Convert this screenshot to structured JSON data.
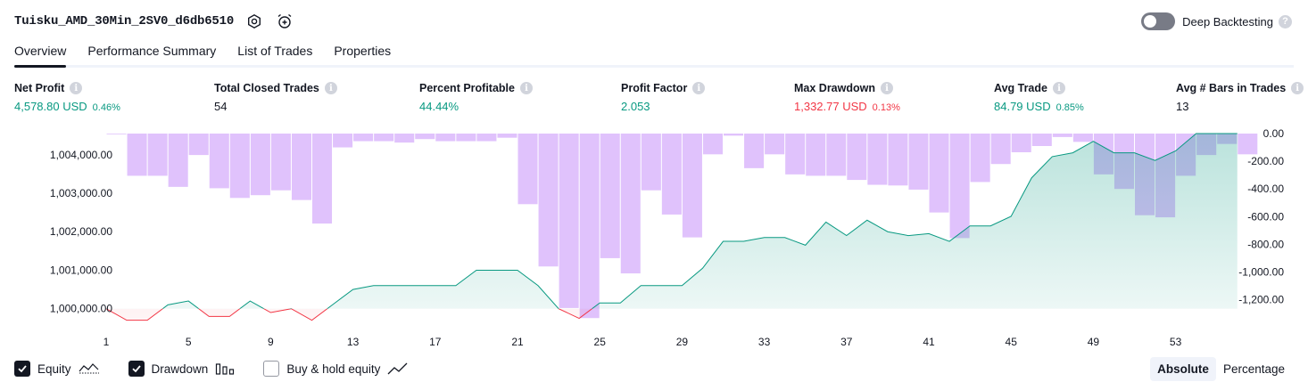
{
  "header": {
    "strategy_name": "Tuisku_AMD_30Min_2SV0_d6db6510",
    "settings_icon": "gear-icon",
    "replay_icon": "alarm-clock-plus-icon",
    "deep_backtesting_label": "Deep Backtesting",
    "deep_backtesting_enabled": false
  },
  "tabs": [
    {
      "label": "Overview",
      "active": true
    },
    {
      "label": "Performance Summary",
      "active": false
    },
    {
      "label": "List of Trades",
      "active": false
    },
    {
      "label": "Properties",
      "active": false
    }
  ],
  "metrics": [
    {
      "label": "Net Profit",
      "value": "4,578.80 USD",
      "pct": "0.46%",
      "tone": "pos"
    },
    {
      "label": "Total Closed Trades",
      "value": "54",
      "pct": "",
      "tone": "neu"
    },
    {
      "label": "Percent Profitable",
      "value": "44.44%",
      "pct": "",
      "tone": "pos"
    },
    {
      "label": "Profit Factor",
      "value": "2.053",
      "pct": "",
      "tone": "pos"
    },
    {
      "label": "Max Drawdown",
      "value": "1,332.77 USD",
      "pct": "0.13%",
      "tone": "neg"
    },
    {
      "label": "Avg Trade",
      "value": "84.79 USD",
      "pct": "0.85%",
      "tone": "pos"
    },
    {
      "label": "Avg # Bars in Trades",
      "value": "13",
      "pct": "",
      "tone": "neu"
    }
  ],
  "info_glyph": "i",
  "chart_data": {
    "type": "line+bar",
    "x": [
      1,
      2,
      3,
      4,
      5,
      6,
      7,
      8,
      9,
      10,
      11,
      12,
      13,
      14,
      15,
      16,
      17,
      18,
      19,
      20,
      21,
      22,
      23,
      24,
      25,
      26,
      27,
      28,
      29,
      30,
      31,
      32,
      33,
      34,
      35,
      36,
      37,
      38,
      39,
      40,
      41,
      42,
      43,
      44,
      45,
      46,
      47,
      48,
      49,
      50,
      51,
      52,
      53,
      54,
      55,
      56
    ],
    "x_ticks": [
      1,
      5,
      9,
      13,
      17,
      21,
      25,
      29,
      33,
      37,
      41,
      45,
      49,
      53
    ],
    "left_axis": {
      "ticks": [
        "1,000,000.00",
        "1,001,000.00",
        "1,002,000.00",
        "1,003,000.00",
        "1,004,000.00"
      ],
      "tick_values": [
        1000000,
        1001000,
        1002000,
        1003000,
        1004000
      ],
      "range": [
        999600,
        1004550
      ]
    },
    "right_axis": {
      "ticks": [
        "0.00",
        "-200.00",
        "-400.00",
        "-600.00",
        "-800.00",
        "-1,000.00",
        "-1,200.00"
      ],
      "tick_values": [
        0,
        -200,
        -400,
        -600,
        -800,
        -1000,
        -1200
      ],
      "range": [
        -1370,
        0
      ]
    },
    "series": [
      {
        "name": "Equity",
        "axis": "left",
        "color_up": "#089981",
        "color_down": "#f23645",
        "baseline": 1000000,
        "values": [
          1000000,
          999700,
          999700,
          1000100,
          1000200,
          999800,
          999800,
          1000200,
          999900,
          1000000,
          999700,
          1000100,
          1000500,
          1000600,
          1000600,
          1000600,
          1000600,
          1000600,
          1001000,
          1001000,
          1001000,
          1000600,
          1000000,
          999750,
          1000150,
          1000150,
          1000600,
          1000600,
          1000600,
          1001050,
          1001750,
          1001750,
          1001850,
          1001850,
          1001650,
          1002250,
          1001900,
          1002300,
          1002000,
          1001900,
          1001950,
          1001750,
          1002150,
          1002150,
          1002400,
          1003400,
          1003950,
          1004050,
          1004350,
          1004050,
          1004050,
          1003850,
          1004100,
          1004550,
          1004550,
          1004550
        ]
      },
      {
        "name": "Drawdown",
        "axis": "right",
        "color": "#dbb7fb",
        "values": [
          -5,
          -305,
          -305,
          -385,
          -155,
          -395,
          -465,
          -445,
          -410,
          -480,
          -650,
          -100,
          -55,
          -55,
          -65,
          -40,
          -55,
          -55,
          -55,
          -30,
          -510,
          -960,
          -1260,
          -1332.77,
          -900,
          -1010,
          -410,
          -585,
          -750,
          -150,
          -15,
          -250,
          -150,
          -295,
          -305,
          -305,
          -335,
          -370,
          -375,
          -405,
          -570,
          -755,
          -350,
          -220,
          -135,
          -90,
          -25,
          -60,
          -295,
          -400,
          -590,
          -605,
          -305,
          -155,
          -75,
          -150
        ]
      }
    ],
    "toggles": [
      {
        "label": "Equity",
        "checked": true,
        "icon": "equity-legend-icon"
      },
      {
        "label": "Drawdown",
        "checked": true,
        "icon": "drawdown-bars-icon"
      },
      {
        "label": "Buy & hold equity",
        "checked": false,
        "icon": "trend-line-icon"
      }
    ],
    "mode_options": [
      {
        "label": "Absolute",
        "active": true
      },
      {
        "label": "Percentage",
        "active": false
      }
    ]
  },
  "colors": {
    "positive": "#089981",
    "negative": "#f23645",
    "drawdown": "#dbb7fb",
    "text": "#131722"
  }
}
